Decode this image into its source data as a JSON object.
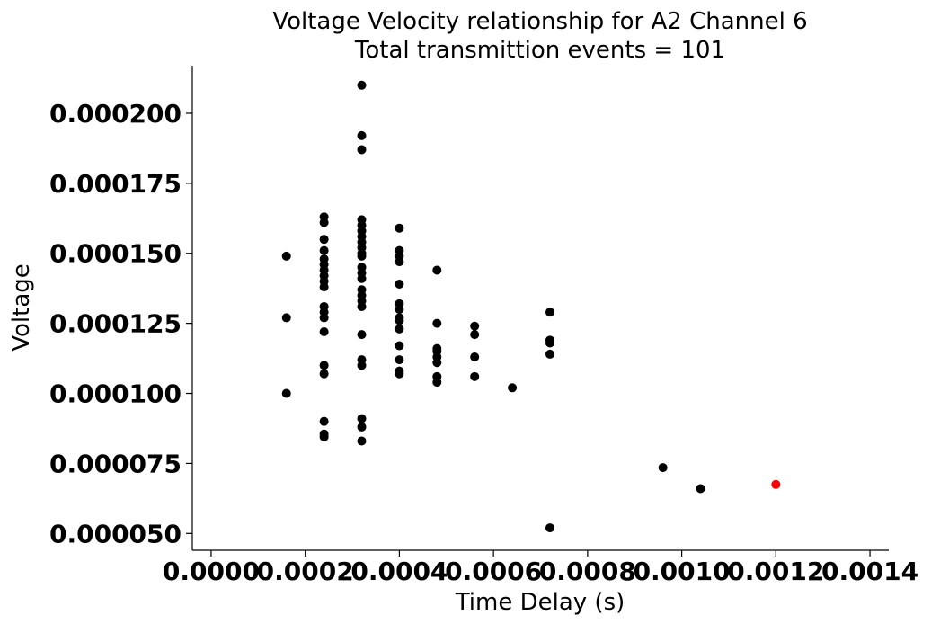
{
  "chart_data": {
    "type": "scatter",
    "title": "Voltage Velocity relationship for A2 Channel 6",
    "subtitle": "Total transmittion events = 101",
    "xlabel": "Time Delay (s)",
    "ylabel": "Voltage",
    "xlim": [
      -4e-05,
      0.00144
    ],
    "ylim": [
      4.4e-05,
      0.000217
    ],
    "x_ticks": [
      0,
      0.0002,
      0.0004,
      0.0006,
      0.0008,
      0.001,
      0.0012,
      0.0014
    ],
    "x_tick_labels": [
      "0.0000",
      "0.0002",
      "0.0004",
      "0.0006",
      "0.0008",
      "0.0010",
      "0.0012",
      "0.0014"
    ],
    "y_ticks": [
      5e-05,
      7.5e-05,
      0.0001,
      0.000125,
      0.00015,
      0.000175,
      0.0002
    ],
    "y_tick_labels": [
      "0.000050",
      "0.000075",
      "0.000100",
      "0.000125",
      "0.000150",
      "0.000175",
      "0.000200"
    ],
    "grid": false,
    "colors": {
      "points": "#000000",
      "highlight": "#ff0000"
    },
    "series": [
      {
        "color": "#000000",
        "points": [
          [
            0.00016,
            0.000149
          ],
          [
            0.00016,
            0.000127
          ],
          [
            0.00016,
            0.0001
          ],
          [
            0.00024,
            0.000163
          ],
          [
            0.00024,
            0.000161
          ],
          [
            0.00024,
            0.000155
          ],
          [
            0.00024,
            0.000151
          ],
          [
            0.00024,
            0.000148
          ],
          [
            0.00024,
            0.000146
          ],
          [
            0.00024,
            0.000144
          ],
          [
            0.00024,
            0.000142
          ],
          [
            0.00024,
            0.00014
          ],
          [
            0.00024,
            0.000138
          ],
          [
            0.00024,
            0.000131
          ],
          [
            0.00024,
            0.000129
          ],
          [
            0.00024,
            0.000127
          ],
          [
            0.00024,
            0.000122
          ],
          [
            0.00024,
            0.00011
          ],
          [
            0.00024,
            0.000107
          ],
          [
            0.00024,
            9e-05
          ],
          [
            0.00024,
            8.55e-05
          ],
          [
            0.00024,
            8.45e-05
          ],
          [
            0.00032,
            0.00021
          ],
          [
            0.00032,
            0.000192
          ],
          [
            0.00032,
            0.000187
          ],
          [
            0.00032,
            0.000162
          ],
          [
            0.00032,
            0.00016
          ],
          [
            0.00032,
            0.000158
          ],
          [
            0.00032,
            0.000156
          ],
          [
            0.00032,
            0.000154
          ],
          [
            0.00032,
            0.000152
          ],
          [
            0.00032,
            0.00015
          ],
          [
            0.00032,
            0.000149
          ],
          [
            0.00032,
            0.000145
          ],
          [
            0.00032,
            0.000143
          ],
          [
            0.00032,
            0.000141
          ],
          [
            0.00032,
            0.000137
          ],
          [
            0.00032,
            0.000135
          ],
          [
            0.00032,
            0.000133
          ],
          [
            0.00032,
            0.000131
          ],
          [
            0.00032,
            0.000121
          ],
          [
            0.00032,
            0.000112
          ],
          [
            0.00032,
            0.00011
          ],
          [
            0.00032,
            9.1e-05
          ],
          [
            0.00032,
            8.8e-05
          ],
          [
            0.00032,
            8.3e-05
          ],
          [
            0.0004,
            0.000159
          ],
          [
            0.0004,
            0.000151
          ],
          [
            0.0004,
            0.000149
          ],
          [
            0.0004,
            0.000147
          ],
          [
            0.0004,
            0.000139
          ],
          [
            0.0004,
            0.000132
          ],
          [
            0.0004,
            0.00013
          ],
          [
            0.0004,
            0.000127
          ],
          [
            0.0004,
            0.000126
          ],
          [
            0.0004,
            0.000123
          ],
          [
            0.0004,
            0.000117
          ],
          [
            0.0004,
            0.000112
          ],
          [
            0.0004,
            0.000108
          ],
          [
            0.0004,
            0.000107
          ],
          [
            0.00048,
            0.000144
          ],
          [
            0.00048,
            0.000125
          ],
          [
            0.00048,
            0.000116
          ],
          [
            0.00048,
            0.000115
          ],
          [
            0.00048,
            0.000113
          ],
          [
            0.00048,
            0.000111
          ],
          [
            0.00048,
            0.000106
          ],
          [
            0.00048,
            0.000104
          ],
          [
            0.00056,
            0.000124
          ],
          [
            0.00056,
            0.000121
          ],
          [
            0.00056,
            0.000113
          ],
          [
            0.00056,
            0.000106
          ],
          [
            0.00064,
            0.000102
          ],
          [
            0.00072,
            0.000129
          ],
          [
            0.00072,
            0.000119
          ],
          [
            0.00072,
            0.000118
          ],
          [
            0.00072,
            0.000114
          ],
          [
            0.00072,
            5.2e-05
          ],
          [
            0.00096,
            7.35e-05
          ],
          [
            0.00104,
            6.6e-05
          ]
        ]
      },
      {
        "color": "#ff0000",
        "points": [
          [
            0.0012,
            6.75e-05
          ]
        ]
      }
    ]
  }
}
